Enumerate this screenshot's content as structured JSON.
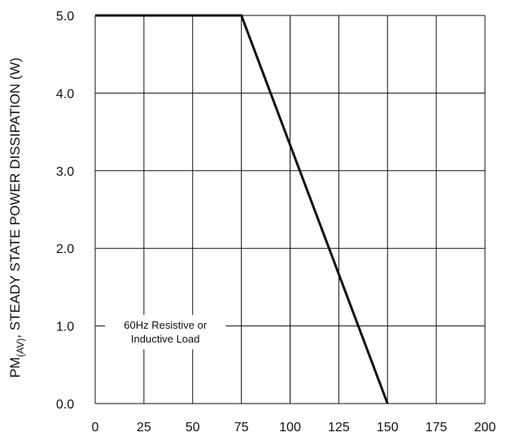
{
  "chart_data": {
    "type": "line",
    "title": "",
    "xlabel": "",
    "ylabel": {
      "main": "PM",
      "sub": "(AV)",
      "rest": ", STEADY STATE POWER DISSIPATION (W)"
    },
    "xlim": [
      0,
      200
    ],
    "ylim": [
      0,
      5
    ],
    "x_ticks": [
      0,
      25,
      50,
      75,
      100,
      125,
      150,
      175,
      200
    ],
    "x_tick_labels": [
      "0",
      "25",
      "50",
      "75",
      "100",
      "125",
      "150",
      "175",
      "200"
    ],
    "y_ticks": [
      0,
      1,
      2,
      3,
      4,
      5
    ],
    "y_tick_labels": [
      "0.0",
      "1.0",
      "2.0",
      "3.0",
      "4.0",
      "5.0"
    ],
    "grid": true,
    "annotation": [
      "60Hz Resistive or",
      "Inductive Load"
    ],
    "series": [
      {
        "x": [
          0,
          75,
          150
        ],
        "y": [
          5.0,
          5.0,
          0.0
        ]
      }
    ],
    "colors": {
      "line": "#111111",
      "grid": "#111111"
    }
  }
}
